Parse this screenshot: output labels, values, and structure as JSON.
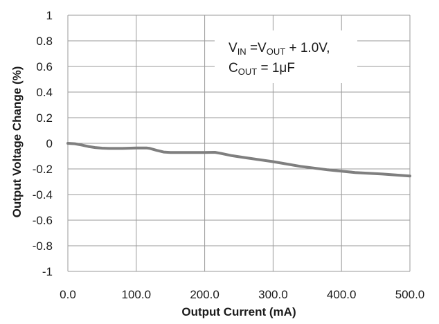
{
  "chart_data": {
    "type": "line",
    "xlabel": "Output Current (mA)",
    "ylabel": "Output Voltage Change (%)",
    "xlim": [
      0,
      500
    ],
    "ylim": [
      -1,
      1
    ],
    "grid": true,
    "x_ticks": [
      "0.0",
      "100.0",
      "200.0",
      "300.0",
      "400.0",
      "500.0"
    ],
    "y_ticks": [
      "1",
      "0.8",
      "0.6",
      "0.4",
      "0.2",
      "0",
      "-0.2",
      "-0.4",
      "-0.6",
      "-0.8",
      "-1"
    ],
    "annotation": {
      "line1": {
        "v": "V",
        "in_sub": "IN",
        "eq": " =V",
        "out_sub": "OUT",
        "rest": " + 1.0V,"
      },
      "line2": {
        "c": "C",
        "out_sub": "OUT",
        "rest": " = 1μF"
      }
    },
    "series_color": "#7f7f7f",
    "series": [
      {
        "x": [
          0,
          10,
          20,
          30,
          40,
          50,
          60,
          80,
          100,
          115,
          120,
          130,
          140,
          150,
          175,
          200,
          215,
          225,
          240,
          260,
          300,
          340,
          380,
          400,
          420,
          460,
          500
        ],
        "values": [
          0.0,
          -0.003,
          -0.013,
          -0.025,
          -0.033,
          -0.038,
          -0.04,
          -0.04,
          -0.037,
          -0.036,
          -0.04,
          -0.055,
          -0.068,
          -0.072,
          -0.072,
          -0.072,
          -0.07,
          -0.08,
          -0.097,
          -0.113,
          -0.143,
          -0.18,
          -0.207,
          -0.218,
          -0.228,
          -0.24,
          -0.255
        ]
      }
    ]
  }
}
